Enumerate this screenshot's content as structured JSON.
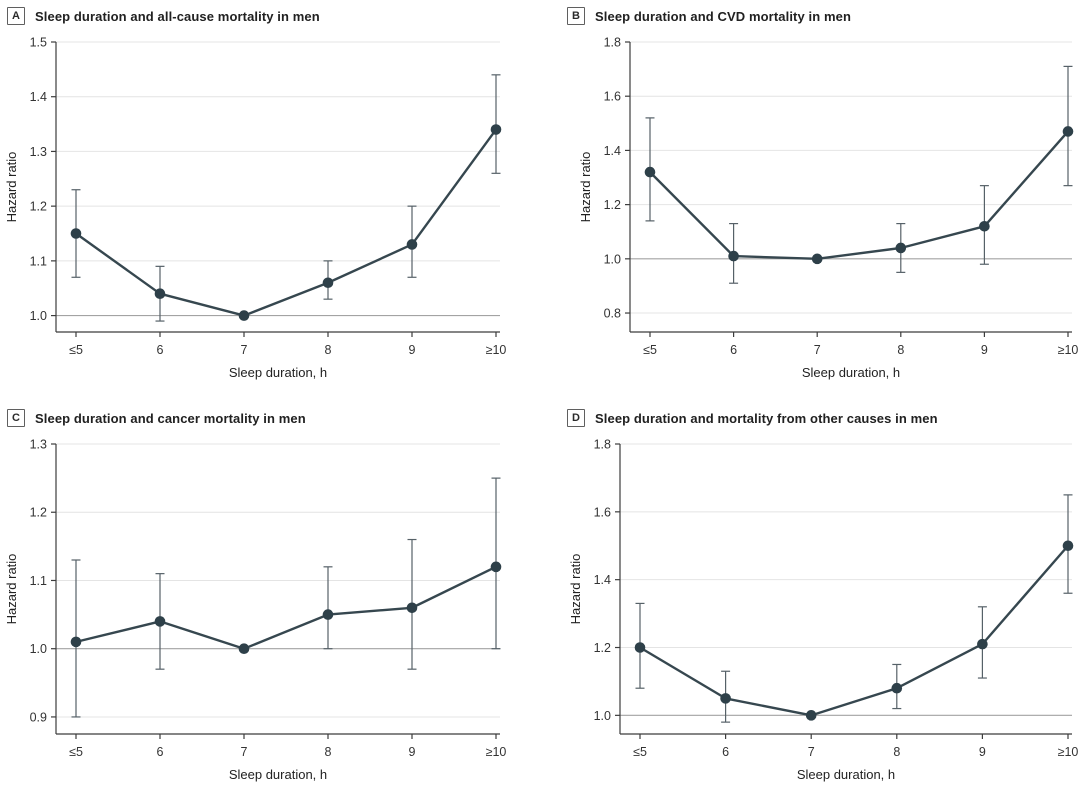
{
  "style": {
    "series_color": "#36474f",
    "point_color": "#2e4049",
    "error_bar_color": "#566168",
    "grid_color": "#e4e4e4",
    "ref_line_color": "#a3a3a3",
    "axis_color": "#3c3c3c",
    "tick_text_color": "#333333",
    "axis_title_color": "#222222"
  },
  "chart_data": [
    {
      "type": "line",
      "panel_label": "A",
      "title": "Sleep duration and all-cause mortality in men",
      "xlabel": "Sleep duration, h",
      "ylabel": "Hazard ratio",
      "categories": [
        "≤5",
        "6",
        "7",
        "8",
        "9",
        "≥10"
      ],
      "series": [
        {
          "name": "Hazard ratio (95% CI)",
          "values": [
            1.15,
            1.04,
            1.0,
            1.06,
            1.13,
            1.34
          ],
          "ci_low": [
            1.07,
            0.99,
            1.0,
            1.03,
            1.07,
            1.26
          ],
          "ci_high": [
            1.23,
            1.09,
            1.0,
            1.1,
            1.2,
            1.44
          ]
        }
      ],
      "yticks": [
        1.0,
        1.1,
        1.2,
        1.3,
        1.4,
        1.5
      ],
      "ylim": [
        0.97,
        1.5
      ],
      "ref_line": 1.0,
      "grid": true,
      "legend": "none"
    },
    {
      "type": "line",
      "panel_label": "B",
      "title": "Sleep duration and CVD mortality in men",
      "xlabel": "Sleep duration, h",
      "ylabel": "Hazard ratio",
      "categories": [
        "≤5",
        "6",
        "7",
        "8",
        "9",
        "≥10"
      ],
      "series": [
        {
          "name": "Hazard ratio (95% CI)",
          "values": [
            1.32,
            1.01,
            1.0,
            1.04,
            1.12,
            1.47
          ],
          "ci_low": [
            1.14,
            0.91,
            1.0,
            0.95,
            0.98,
            1.27
          ],
          "ci_high": [
            1.52,
            1.13,
            1.0,
            1.13,
            1.27,
            1.71
          ]
        }
      ],
      "yticks": [
        0.8,
        1.0,
        1.2,
        1.4,
        1.6,
        1.8
      ],
      "ylim": [
        0.73,
        1.8
      ],
      "ref_line": 1.0,
      "grid": true,
      "legend": "none"
    },
    {
      "type": "line",
      "panel_label": "C",
      "title": "Sleep duration and cancer mortality in men",
      "xlabel": "Sleep duration, h",
      "ylabel": "Hazard ratio",
      "categories": [
        "≤5",
        "6",
        "7",
        "8",
        "9",
        "≥10"
      ],
      "series": [
        {
          "name": "Hazard ratio (95% CI)",
          "values": [
            1.01,
            1.04,
            1.0,
            1.05,
            1.06,
            1.12
          ],
          "ci_low": [
            0.9,
            0.97,
            1.0,
            1.0,
            0.97,
            1.0
          ],
          "ci_high": [
            1.13,
            1.11,
            1.0,
            1.12,
            1.16,
            1.25
          ]
        }
      ],
      "yticks": [
        0.9,
        1.0,
        1.1,
        1.2,
        1.3
      ],
      "ylim": [
        0.875,
        1.3
      ],
      "ref_line": 1.0,
      "grid": true,
      "legend": "none"
    },
    {
      "type": "line",
      "panel_label": "D",
      "title": "Sleep duration and mortality from other causes in men",
      "xlabel": "Sleep duration, h",
      "ylabel": "Hazard ratio",
      "categories": [
        "≤5",
        "6",
        "7",
        "8",
        "9",
        "≥10"
      ],
      "series": [
        {
          "name": "Hazard ratio (95% CI)",
          "values": [
            1.2,
            1.05,
            1.0,
            1.08,
            1.21,
            1.5
          ],
          "ci_low": [
            1.08,
            0.98,
            1.0,
            1.02,
            1.11,
            1.36
          ],
          "ci_high": [
            1.33,
            1.13,
            1.0,
            1.15,
            1.32,
            1.65
          ]
        }
      ],
      "yticks": [
        1.0,
        1.2,
        1.4,
        1.6,
        1.8
      ],
      "ylim": [
        0.945,
        1.8
      ],
      "ref_line": 1.0,
      "grid": true,
      "legend": "none"
    }
  ]
}
